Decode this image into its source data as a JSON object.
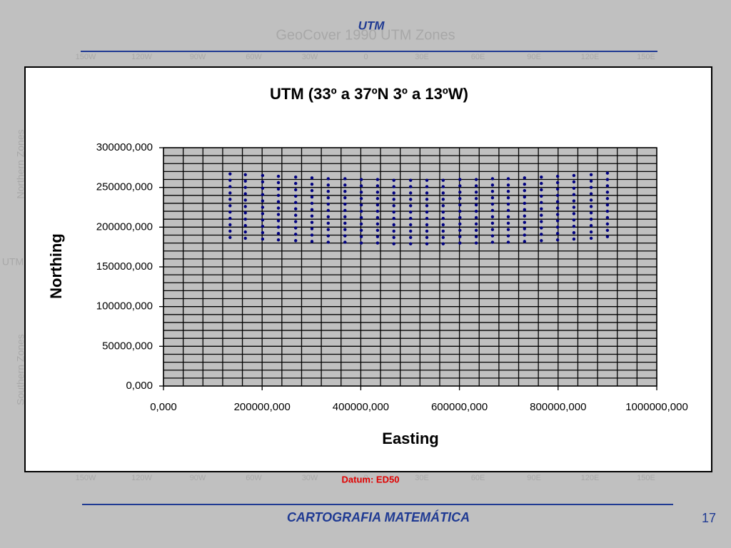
{
  "slide": {
    "title": "UTM",
    "datum": "Datum: ED50",
    "footer": "CARTOGRAFIA MATEMÁTICA",
    "page_number": "17"
  },
  "background": {
    "title": "GeoCover 1990 UTM Zones",
    "longitudes": [
      "150W",
      "120W",
      "90W",
      "60W",
      "30W",
      "0",
      "30E",
      "60E",
      "90E",
      "120E",
      "150E"
    ],
    "side_labels": [
      "Northern Zones",
      "UTM",
      "Southern Zones"
    ]
  },
  "chart_data": {
    "type": "scatter",
    "title": "UTM (33º a 37ºN 3º a 13ºW)",
    "x_label": "Easting",
    "y_label": "Northing",
    "color": "#000080",
    "xlim": [
      0,
      1000000
    ],
    "ylim": [
      0,
      300000
    ],
    "xticks": [
      {
        "value": 0,
        "label": "0,000"
      },
      {
        "value": 200000,
        "label": "200000,000"
      },
      {
        "value": 400000,
        "label": "400000,000"
      },
      {
        "value": 600000,
        "label": "600000,000"
      },
      {
        "value": 800000,
        "label": "800000,000"
      },
      {
        "value": 1000000,
        "label": "1000000,000"
      }
    ],
    "yticks": [
      {
        "value": 0,
        "label": "0,000"
      },
      {
        "value": 50000,
        "label": "50000,000"
      },
      {
        "value": 100000,
        "label": "100000,000"
      },
      {
        "value": 150000,
        "label": "150000,000"
      },
      {
        "value": 200000,
        "label": "200000,000"
      },
      {
        "value": 250000,
        "label": "250000,000"
      },
      {
        "value": 300000,
        "label": "300000,000"
      }
    ],
    "xgrid": [
      0,
      40000,
      80000,
      120000,
      160000,
      200000,
      240000,
      280000,
      320000,
      360000,
      400000,
      440000,
      480000,
      520000,
      560000,
      600000,
      640000,
      680000,
      720000,
      760000,
      800000,
      840000,
      880000,
      920000,
      960000,
      1000000
    ],
    "ygrid": [
      0,
      10000,
      20000,
      30000,
      40000,
      50000,
      60000,
      70000,
      80000,
      90000,
      100000,
      110000,
      120000,
      130000,
      140000,
      150000,
      160000,
      170000,
      180000,
      190000,
      200000,
      210000,
      220000,
      230000,
      240000,
      250000,
      260000,
      270000,
      280000,
      290000,
      300000
    ],
    "x": [
      135000,
      135000,
      135000,
      135000,
      135000,
      135000,
      135000,
      135000,
      135000,
      135000,
      135000,
      166000,
      166000,
      166000,
      166000,
      166000,
      166000,
      166000,
      166000,
      166000,
      166000,
      166000,
      201000,
      201000,
      201000,
      201000,
      201000,
      201000,
      201000,
      201000,
      201000,
      201000,
      201000,
      233000,
      233000,
      233000,
      233000,
      233000,
      233000,
      233000,
      233000,
      233000,
      233000,
      233000,
      268000,
      268000,
      268000,
      268000,
      268000,
      268000,
      268000,
      268000,
      268000,
      268000,
      268000,
      301000,
      301000,
      301000,
      301000,
      301000,
      301000,
      301000,
      301000,
      301000,
      301000,
      301000,
      334000,
      334000,
      334000,
      334000,
      334000,
      334000,
      334000,
      334000,
      334000,
      334000,
      334000,
      368000,
      368000,
      368000,
      368000,
      368000,
      368000,
      368000,
      368000,
      368000,
      368000,
      368000,
      401000,
      401000,
      401000,
      401000,
      401000,
      401000,
      401000,
      401000,
      401000,
      401000,
      401000,
      434000,
      434000,
      434000,
      434000,
      434000,
      434000,
      434000,
      434000,
      434000,
      434000,
      434000,
      467000,
      467000,
      467000,
      467000,
      467000,
      467000,
      467000,
      467000,
      467000,
      467000,
      467000,
      501000,
      501000,
      501000,
      501000,
      501000,
      501000,
      501000,
      501000,
      501000,
      501000,
      501000,
      534000,
      534000,
      534000,
      534000,
      534000,
      534000,
      534000,
      534000,
      534000,
      534000,
      534000,
      567000,
      567000,
      567000,
      567000,
      567000,
      567000,
      567000,
      567000,
      567000,
      567000,
      567000,
      601000,
      601000,
      601000,
      601000,
      601000,
      601000,
      601000,
      601000,
      601000,
      601000,
      601000,
      634000,
      634000,
      634000,
      634000,
      634000,
      634000,
      634000,
      634000,
      634000,
      634000,
      634000,
      667000,
      667000,
      667000,
      667000,
      667000,
      667000,
      667000,
      667000,
      667000,
      667000,
      667000,
      699000,
      699000,
      699000,
      699000,
      699000,
      699000,
      699000,
      699000,
      699000,
      699000,
      699000,
      732000,
      732000,
      732000,
      732000,
      732000,
      732000,
      732000,
      732000,
      732000,
      732000,
      732000,
      766000,
      766000,
      766000,
      766000,
      766000,
      766000,
      766000,
      766000,
      766000,
      766000,
      766000,
      799000,
      799000,
      799000,
      799000,
      799000,
      799000,
      799000,
      799000,
      799000,
      799000,
      799000,
      832000,
      832000,
      832000,
      832000,
      832000,
      832000,
      832000,
      832000,
      832000,
      832000,
      832000,
      867000,
      867000,
      867000,
      867000,
      867000,
      867000,
      867000,
      867000,
      867000,
      867000,
      867000,
      900000,
      900000,
      900000,
      900000,
      900000,
      900000,
      900000,
      900000,
      900000,
      900000,
      900000
    ],
    "values": [
      267000,
      259000,
      251000,
      243000,
      235000,
      227000,
      219000,
      211000,
      203000,
      195000,
      187000,
      266000,
      258000,
      250000,
      242000,
      234000,
      226000,
      218000,
      210000,
      202000,
      194000,
      186000,
      265000,
      257000,
      249000,
      241000,
      233000,
      225000,
      217000,
      209000,
      201000,
      193000,
      185000,
      264000,
      256000,
      248000,
      240000,
      232000,
      224000,
      216000,
      208000,
      200000,
      192000,
      184000,
      263000,
      255000,
      247000,
      239000,
      231000,
      223000,
      215000,
      207000,
      199000,
      191000,
      183000,
      262000,
      254000,
      246000,
      238000,
      230000,
      222000,
      214000,
      206000,
      198000,
      190000,
      182000,
      261000,
      253000,
      245000,
      237000,
      229000,
      221000,
      213000,
      205000,
      197000,
      189000,
      181000,
      261000,
      253000,
      245000,
      237000,
      229000,
      221000,
      213000,
      205000,
      197000,
      189000,
      181000,
      260000,
      252000,
      244000,
      236000,
      228000,
      220000,
      212000,
      204000,
      196000,
      188000,
      180000,
      260000,
      252000,
      244000,
      236000,
      228000,
      220000,
      212000,
      204000,
      196000,
      188000,
      180000,
      259000,
      251000,
      243000,
      235000,
      227000,
      219000,
      211000,
      203000,
      195000,
      187000,
      179000,
      259000,
      251000,
      243000,
      235000,
      227000,
      219000,
      211000,
      203000,
      195000,
      187000,
      179000,
      259000,
      251000,
      243000,
      235000,
      227000,
      219000,
      211000,
      203000,
      195000,
      187000,
      179000,
      259000,
      251000,
      243000,
      235000,
      227000,
      219000,
      211000,
      203000,
      195000,
      187000,
      179000,
      260000,
      252000,
      244000,
      236000,
      228000,
      220000,
      212000,
      204000,
      196000,
      188000,
      180000,
      260000,
      252000,
      244000,
      236000,
      228000,
      220000,
      212000,
      204000,
      196000,
      188000,
      180000,
      261000,
      253000,
      245000,
      237000,
      229000,
      221000,
      213000,
      205000,
      197000,
      189000,
      181000,
      261000,
      253000,
      245000,
      237000,
      229000,
      221000,
      213000,
      205000,
      197000,
      189000,
      181000,
      262000,
      254000,
      246000,
      238000,
      230000,
      222000,
      214000,
      206000,
      198000,
      190000,
      182000,
      263000,
      255000,
      247000,
      239000,
      231000,
      223000,
      215000,
      207000,
      199000,
      191000,
      183000,
      264000,
      256000,
      248000,
      240000,
      232000,
      224000,
      216000,
      208000,
      200000,
      192000,
      184000,
      265000,
      257000,
      249000,
      241000,
      233000,
      225000,
      217000,
      209000,
      201000,
      193000,
      185000,
      266000,
      258000,
      250000,
      242000,
      234000,
      226000,
      218000,
      210000,
      202000,
      194000,
      186000,
      268000,
      260000,
      252000,
      244000,
      236000,
      228000,
      220000,
      212000,
      204000,
      196000,
      188000
    ]
  }
}
